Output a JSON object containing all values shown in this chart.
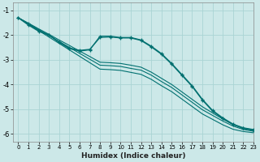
{
  "bg_color": "#cce8e8",
  "grid_color": "#aad4d4",
  "line_color": "#007070",
  "xlabel": "Humidex (Indice chaleur)",
  "xlim": [
    -0.5,
    23
  ],
  "ylim": [
    -6.3,
    -0.7
  ],
  "yticks": [
    -6,
    -5,
    -4,
    -3,
    -2,
    -1
  ],
  "xticks": [
    0,
    1,
    2,
    3,
    4,
    5,
    6,
    7,
    8,
    9,
    10,
    11,
    12,
    13,
    14,
    15,
    16,
    17,
    18,
    19,
    20,
    21,
    22,
    23
  ],
  "line1_x": [
    0,
    1,
    2,
    3,
    4,
    5,
    6,
    7,
    8,
    9,
    10,
    11,
    12,
    13,
    14,
    15,
    16,
    17,
    18,
    19,
    20,
    21,
    22,
    23
  ],
  "line1_y": [
    -1.3,
    -1.6,
    -1.85,
    -2.0,
    -2.3,
    -2.55,
    -2.65,
    -2.6,
    -2.05,
    -2.05,
    -2.1,
    -2.1,
    -2.2,
    -2.45,
    -2.75,
    -3.15,
    -3.6,
    -4.05,
    -4.6,
    -5.05,
    -5.35,
    -5.6,
    -5.75,
    -5.82
  ],
  "line2_x": [
    0,
    1,
    2,
    3,
    4,
    5,
    6,
    7,
    8,
    9,
    10,
    11,
    12,
    13,
    14,
    15,
    16,
    17,
    18,
    19,
    20,
    21,
    22,
    23
  ],
  "line2_y": [
    -1.3,
    -1.55,
    -1.82,
    -2.0,
    -2.28,
    -2.52,
    -2.62,
    -2.58,
    -2.1,
    -2.08,
    -2.12,
    -2.12,
    -2.22,
    -2.48,
    -2.78,
    -3.18,
    -3.63,
    -4.08,
    -4.63,
    -5.08,
    -5.38,
    -5.62,
    -5.77,
    -5.84
  ],
  "line3_x": [
    0,
    1,
    2,
    3,
    4,
    5,
    6,
    7,
    8,
    9,
    10,
    11,
    12,
    13,
    14,
    15,
    16,
    17,
    18,
    19,
    20,
    21,
    22,
    23
  ],
  "line3_y": [
    -1.3,
    -1.52,
    -1.75,
    -1.97,
    -2.2,
    -2.42,
    -2.65,
    -2.87,
    -3.1,
    -3.12,
    -3.15,
    -3.22,
    -3.3,
    -3.5,
    -3.75,
    -4.0,
    -4.3,
    -4.6,
    -4.9,
    -5.15,
    -5.4,
    -5.62,
    -5.78,
    -5.86
  ],
  "line4_x": [
    0,
    1,
    2,
    3,
    4,
    5,
    6,
    7,
    8,
    9,
    10,
    11,
    12,
    13,
    14,
    15,
    16,
    17,
    18,
    19,
    20,
    21,
    22,
    23
  ],
  "line4_y": [
    -1.3,
    -1.54,
    -1.78,
    -2.02,
    -2.26,
    -2.5,
    -2.74,
    -2.98,
    -3.22,
    -3.24,
    -3.27,
    -3.35,
    -3.42,
    -3.62,
    -3.88,
    -4.12,
    -4.42,
    -4.72,
    -5.02,
    -5.25,
    -5.48,
    -5.68,
    -5.82,
    -5.89
  ],
  "line5_x": [
    0,
    1,
    2,
    3,
    4,
    5,
    6,
    7,
    8,
    9,
    10,
    11,
    12,
    13,
    14,
    15,
    16,
    17,
    18,
    19,
    20,
    21,
    22,
    23
  ],
  "line5_y": [
    -1.3,
    -1.56,
    -1.82,
    -2.08,
    -2.34,
    -2.6,
    -2.86,
    -3.12,
    -3.38,
    -3.4,
    -3.43,
    -3.51,
    -3.59,
    -3.79,
    -4.05,
    -4.29,
    -4.59,
    -4.89,
    -5.19,
    -5.41,
    -5.63,
    -5.81,
    -5.9,
    -5.95
  ]
}
